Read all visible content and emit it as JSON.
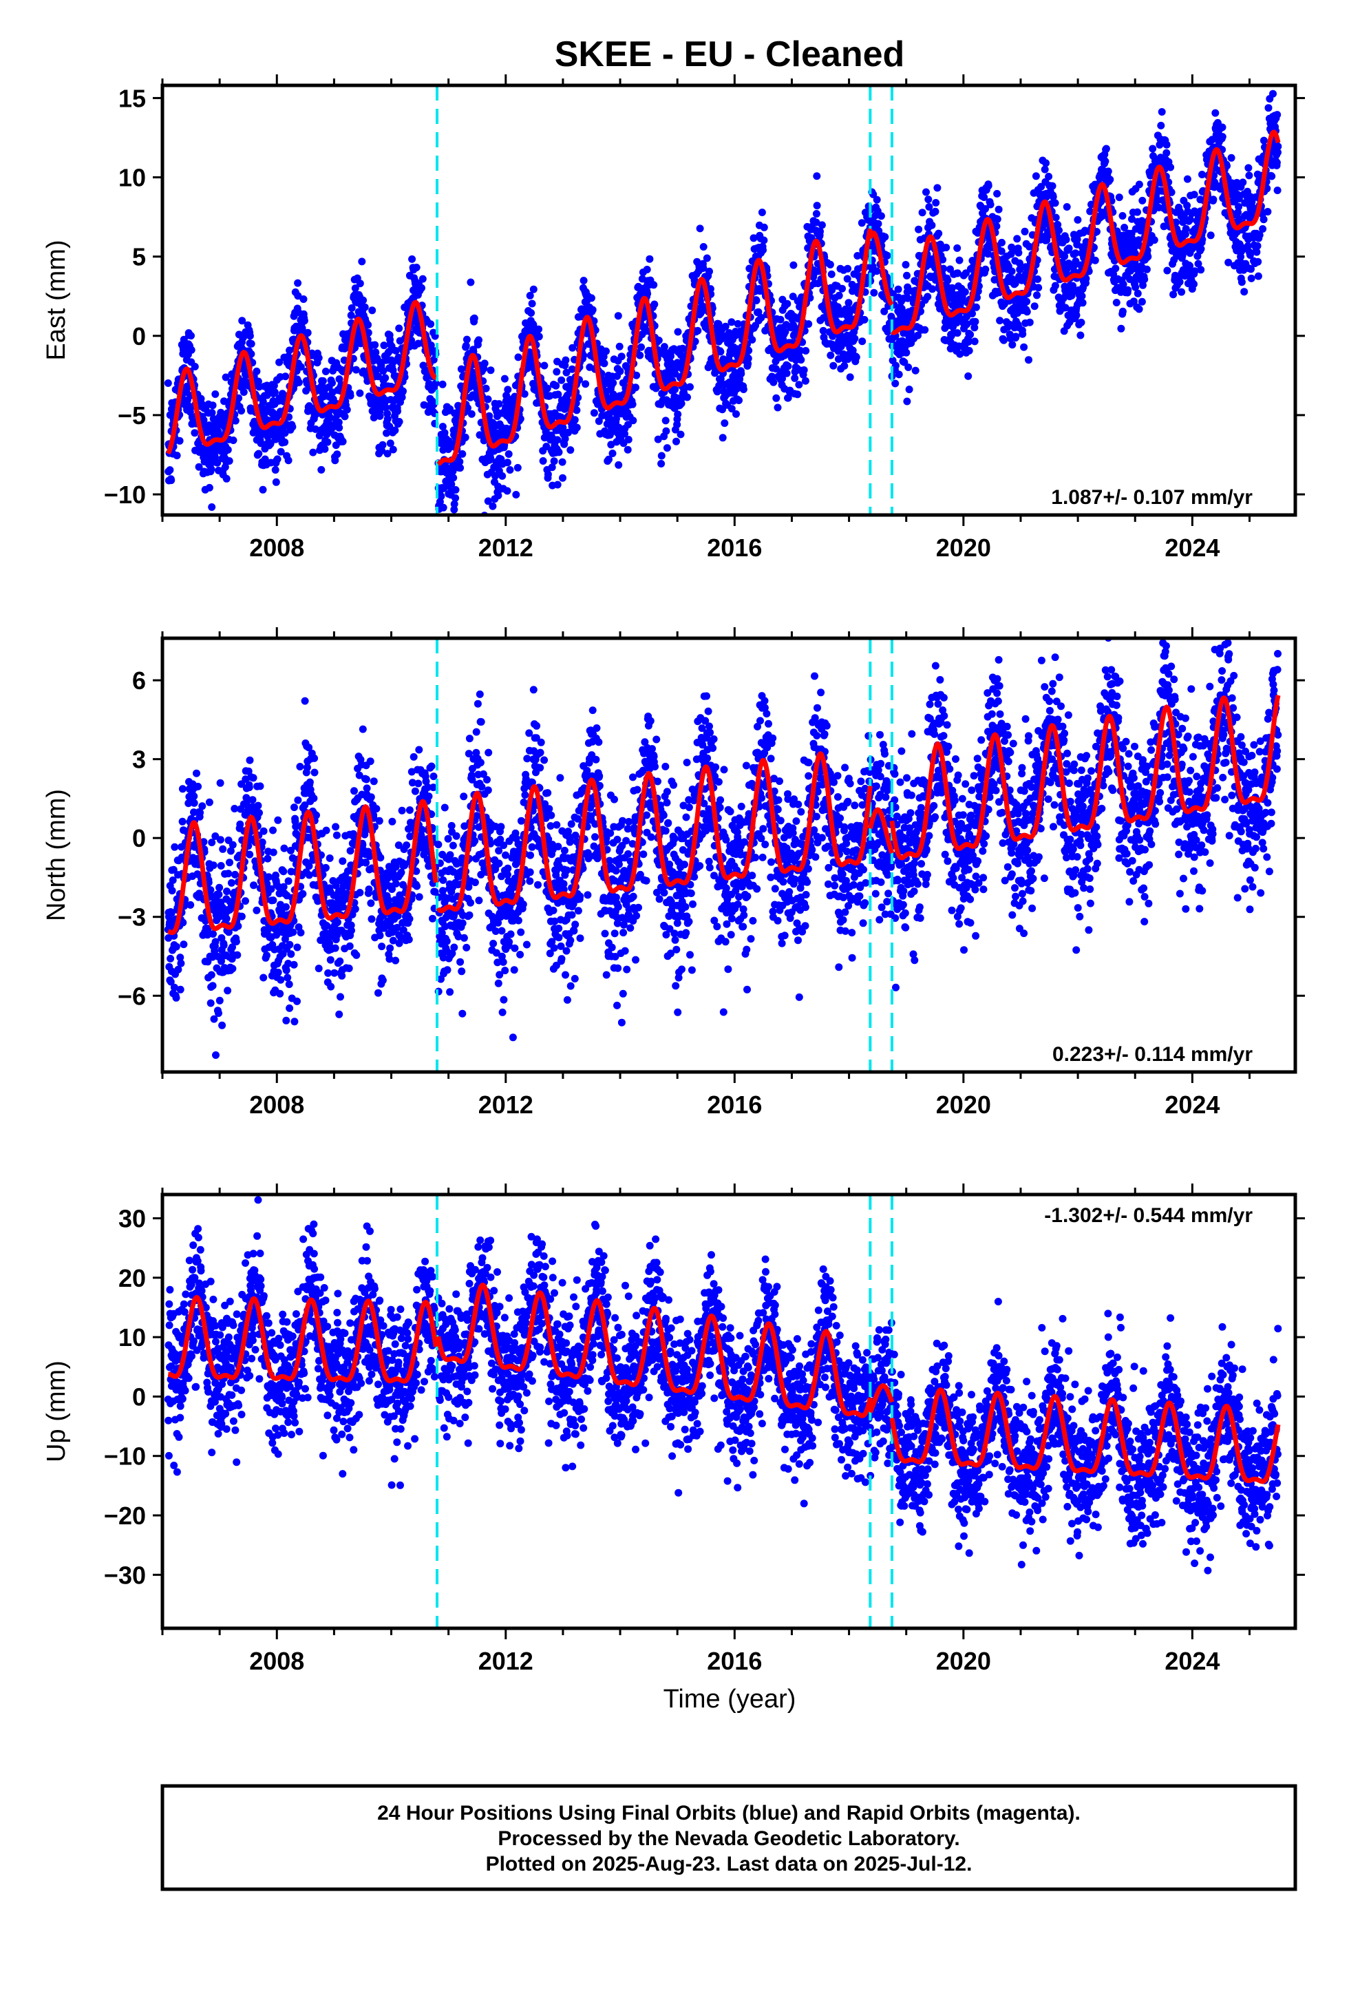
{
  "chart_title": "SKEE  - EU - Cleaned",
  "chart_data": [
    {
      "type": "scatter",
      "component": "east",
      "ylabel": "East (mm)",
      "xlabel": "",
      "xlim": [
        2006.0,
        2025.8
      ],
      "ylim": [
        -11.3,
        15.8
      ],
      "x_ticks": [
        2008,
        2012,
        2016,
        2020,
        2024
      ],
      "y_ticks": [
        -10,
        -5,
        0,
        5,
        10,
        15
      ],
      "y_tick_labels": [
        "−10",
        "−5",
        "0",
        "5",
        "10",
        "15"
      ],
      "rate_text": "1.087+/- 0.107 mm/yr",
      "rate_position": "bottom-right",
      "offset_epochs": [
        2010.8,
        2018.37,
        2018.75
      ],
      "model": {
        "segments": [
          {
            "start": 2006.1,
            "end": 2010.78,
            "offset": -5.8,
            "trend": 1.05,
            "ref": 2006.1,
            "amplitude": 2.5,
            "peak": 2006.42
          },
          {
            "start": 2010.82,
            "end": 2018.37,
            "offset": -6.0,
            "trend": 1.2,
            "ref": 2010.82,
            "amplitude": 3.0,
            "peak": 2011.42
          },
          {
            "start": 2018.37,
            "end": 2018.75,
            "offset": 3.2,
            "trend": 1.0,
            "ref": 2018.37,
            "amplitude": 2.4,
            "peak": 2018.42
          },
          {
            "start": 2018.75,
            "end": 2025.5,
            "offset": 2.0,
            "trend": 1.1,
            "ref": 2018.75,
            "amplitude": 2.6,
            "peak": 2019.42
          }
        ],
        "scatter_sd": 1.6
      },
      "colors": {
        "points": "#0000ff",
        "model": "#ff0000",
        "offsets": "#00e5ee"
      }
    },
    {
      "type": "scatter",
      "component": "north",
      "ylabel": "North (mm)",
      "xlabel": "",
      "xlim": [
        2006.0,
        2025.8
      ],
      "ylim": [
        -8.9,
        7.6
      ],
      "x_ticks": [
        2008,
        2012,
        2016,
        2020,
        2024
      ],
      "y_ticks": [
        -6,
        -3,
        0,
        3,
        6
      ],
      "y_tick_labels": [
        "−6",
        "−3",
        "0",
        "3",
        "6"
      ],
      "rate_text": "0.223+/- 0.114 mm/yr",
      "rate_position": "bottom-right",
      "offset_epochs": [
        2010.8,
        2018.37,
        2018.75
      ],
      "model": {
        "segments": [
          {
            "start": 2006.1,
            "end": 2010.78,
            "offset": -2.2,
            "trend": 0.2,
            "ref": 2006.1,
            "amplitude": 2.0,
            "peak": 2006.55
          },
          {
            "start": 2010.82,
            "end": 2018.37,
            "offset": -1.3,
            "trend": 0.25,
            "ref": 2010.82,
            "amplitude": 2.1,
            "peak": 2011.5
          },
          {
            "start": 2018.37,
            "end": 2018.75,
            "offset": -0.3,
            "trend": 0.2,
            "ref": 2018.37,
            "amplitude": 1.0,
            "peak": 2018.5
          },
          {
            "start": 2018.75,
            "end": 2025.5,
            "offset": 0.6,
            "trend": 0.35,
            "ref": 2018.75,
            "amplitude": 2.0,
            "peak": 2019.55
          }
        ],
        "scatter_sd": 1.5
      },
      "colors": {
        "points": "#0000ff",
        "model": "#ff0000",
        "offsets": "#00e5ee"
      }
    },
    {
      "type": "scatter",
      "component": "up",
      "ylabel": "Up (mm)",
      "xlabel": "Time (year)",
      "xlim": [
        2006.0,
        2025.8
      ],
      "ylim": [
        -39,
        34
      ],
      "x_ticks": [
        2008,
        2012,
        2016,
        2020,
        2024
      ],
      "y_ticks": [
        -30,
        -20,
        -10,
        0,
        10,
        20,
        30
      ],
      "y_tick_labels": [
        "−30",
        "−20",
        "−10",
        "0",
        "10",
        "20",
        "30"
      ],
      "rate_text": "-1.302+/- 0.544 mm/yr",
      "rate_position": "top-right",
      "offset_epochs": [
        2010.8,
        2018.37,
        2018.75
      ],
      "model": {
        "segments": [
          {
            "start": 2006.1,
            "end": 2010.78,
            "offset": 8.0,
            "trend": -0.2,
            "ref": 2006.1,
            "amplitude": 6.5,
            "peak": 2006.6
          },
          {
            "start": 2010.82,
            "end": 2018.37,
            "offset": 11.0,
            "trend": -1.3,
            "ref": 2010.82,
            "amplitude": 6.5,
            "peak": 2011.6
          },
          {
            "start": 2018.37,
            "end": 2018.75,
            "offset": -2.0,
            "trend": -1.0,
            "ref": 2018.37,
            "amplitude": 3.0,
            "peak": 2018.6
          },
          {
            "start": 2018.75,
            "end": 2025.5,
            "offset": -6.5,
            "trend": -0.55,
            "ref": 2018.75,
            "amplitude": 6.0,
            "peak": 2019.6
          }
        ],
        "scatter_sd": 5.5
      },
      "colors": {
        "points": "#0000ff",
        "model": "#ff0000",
        "offsets": "#00e5ee"
      }
    }
  ],
  "footer": {
    "line1": "24 Hour Positions Using Final Orbits (blue) and Rapid Orbits (magenta).",
    "line2": "Processed by the Nevada Geodetic Laboratory.",
    "line3": "Plotted on 2025-Aug-23. Last data on 2025-Jul-12."
  }
}
